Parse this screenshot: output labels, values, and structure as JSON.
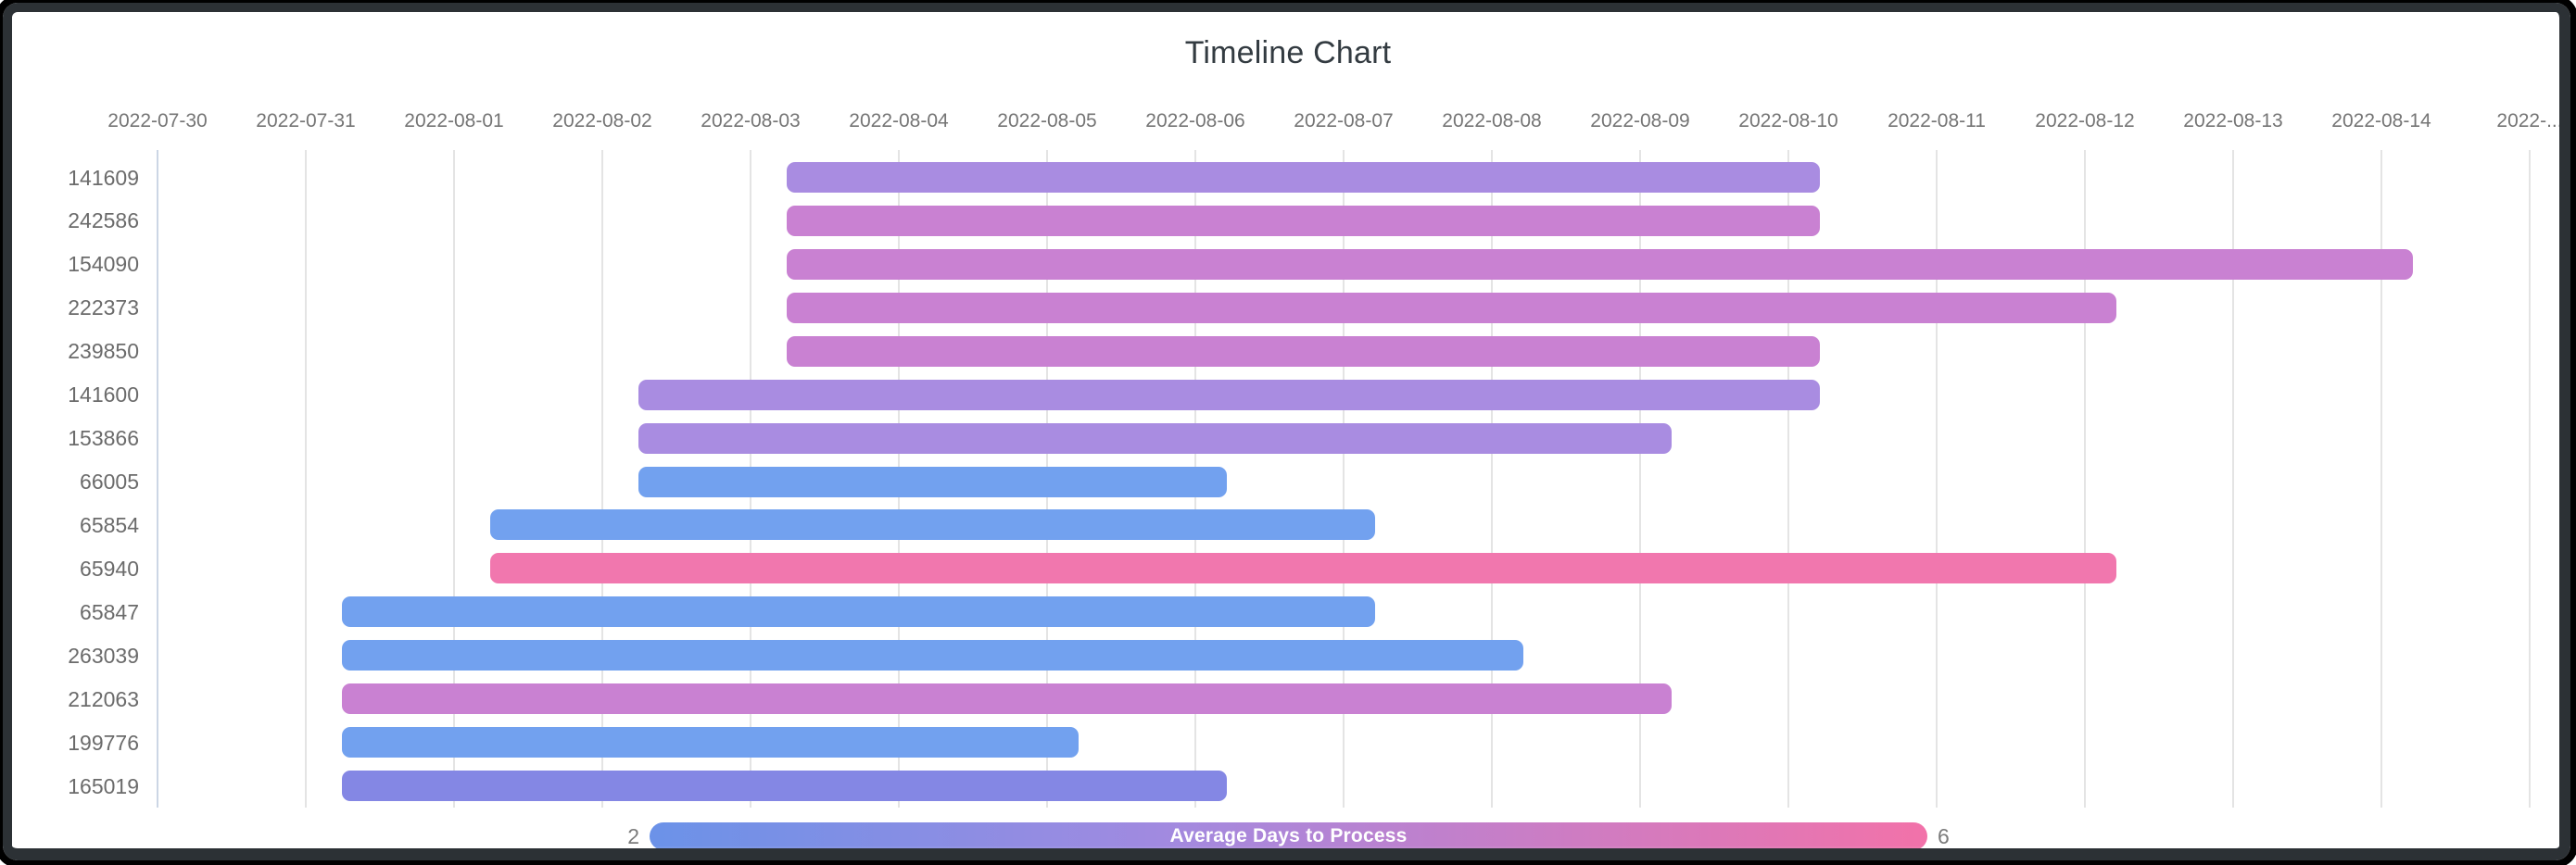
{
  "title": "Timeline Chart",
  "legend": {
    "label": "Average Days to Process",
    "min": "2",
    "max": "6"
  },
  "colors": {
    "blue": "#72a1ef",
    "periwinkle": "#8487e4",
    "purple": "#a98ce1",
    "orchid": "#c981d2",
    "pink": "#f177ae",
    "legend_gradient": [
      "#6b92e8",
      "#a18ae0",
      "#c080cc",
      "#f272a9"
    ],
    "title_text": "#333b41",
    "axis_text": "#757575",
    "gridline": "#e4e4e4",
    "axis_line": "#ccd6e5",
    "frame": "#2c3135"
  },
  "chart_data": {
    "type": "bar",
    "subtype": "timeline-gantt",
    "title": "Timeline Chart",
    "xlabel": "",
    "ylabel": "",
    "grid": true,
    "legend": {
      "style": "continuous-gradient",
      "label": "Average Days to Process",
      "min": 2,
      "max": 6,
      "position": "bottom"
    },
    "x_axis": {
      "range_start": "2022-07-30",
      "range_end": "2022-08-15",
      "ticks": [
        "2022-07-30",
        "2022-07-31",
        "2022-08-01",
        "2022-08-02",
        "2022-08-03",
        "2022-08-04",
        "2022-08-05",
        "2022-08-06",
        "2022-08-07",
        "2022-08-08",
        "2022-08-09",
        "2022-08-10",
        "2022-08-11",
        "2022-08-12",
        "2022-08-13",
        "2022-08-14",
        "2022-..."
      ]
    },
    "rows": [
      {
        "id": "141609",
        "start": "2022-08-03",
        "end": "2022-08-10",
        "duration_days": 7,
        "color_key": "purple",
        "approx_avg_days": 4
      },
      {
        "id": "242586",
        "start": "2022-08-03",
        "end": "2022-08-10",
        "duration_days": 7,
        "color_key": "orchid",
        "approx_avg_days": 5
      },
      {
        "id": "154090",
        "start": "2022-08-03",
        "end": "2022-08-14",
        "duration_days": 11,
        "color_key": "orchid",
        "approx_avg_days": 5
      },
      {
        "id": "222373",
        "start": "2022-08-03",
        "end": "2022-08-12",
        "duration_days": 9,
        "color_key": "orchid",
        "approx_avg_days": 5
      },
      {
        "id": "239850",
        "start": "2022-08-03",
        "end": "2022-08-10",
        "duration_days": 7,
        "color_key": "orchid",
        "approx_avg_days": 5
      },
      {
        "id": "141600",
        "start": "2022-08-02",
        "end": "2022-08-10",
        "duration_days": 8,
        "color_key": "purple",
        "approx_avg_days": 4
      },
      {
        "id": "153866",
        "start": "2022-08-02",
        "end": "2022-08-09",
        "duration_days": 7,
        "color_key": "purple",
        "approx_avg_days": 4
      },
      {
        "id": "66005",
        "start": "2022-08-02",
        "end": "2022-08-06",
        "duration_days": 4,
        "color_key": "blue",
        "approx_avg_days": 2
      },
      {
        "id": "65854",
        "start": "2022-08-01",
        "end": "2022-08-07",
        "duration_days": 6,
        "color_key": "blue",
        "approx_avg_days": 2
      },
      {
        "id": "65940",
        "start": "2022-08-01",
        "end": "2022-08-12",
        "duration_days": 11,
        "color_key": "pink",
        "approx_avg_days": 6
      },
      {
        "id": "65847",
        "start": "2022-07-31",
        "end": "2022-08-07",
        "duration_days": 7,
        "color_key": "blue",
        "approx_avg_days": 2
      },
      {
        "id": "263039",
        "start": "2022-07-31",
        "end": "2022-08-08",
        "duration_days": 8,
        "color_key": "blue",
        "approx_avg_days": 2
      },
      {
        "id": "212063",
        "start": "2022-07-31",
        "end": "2022-08-09",
        "duration_days": 9,
        "color_key": "orchid",
        "approx_avg_days": 5
      },
      {
        "id": "199776",
        "start": "2022-07-31",
        "end": "2022-08-05",
        "duration_days": 5,
        "color_key": "blue",
        "approx_avg_days": 2
      },
      {
        "id": "165019",
        "start": "2022-07-31",
        "end": "2022-08-06",
        "duration_days": 6,
        "color_key": "periwinkle",
        "approx_avg_days": 3
      }
    ]
  }
}
